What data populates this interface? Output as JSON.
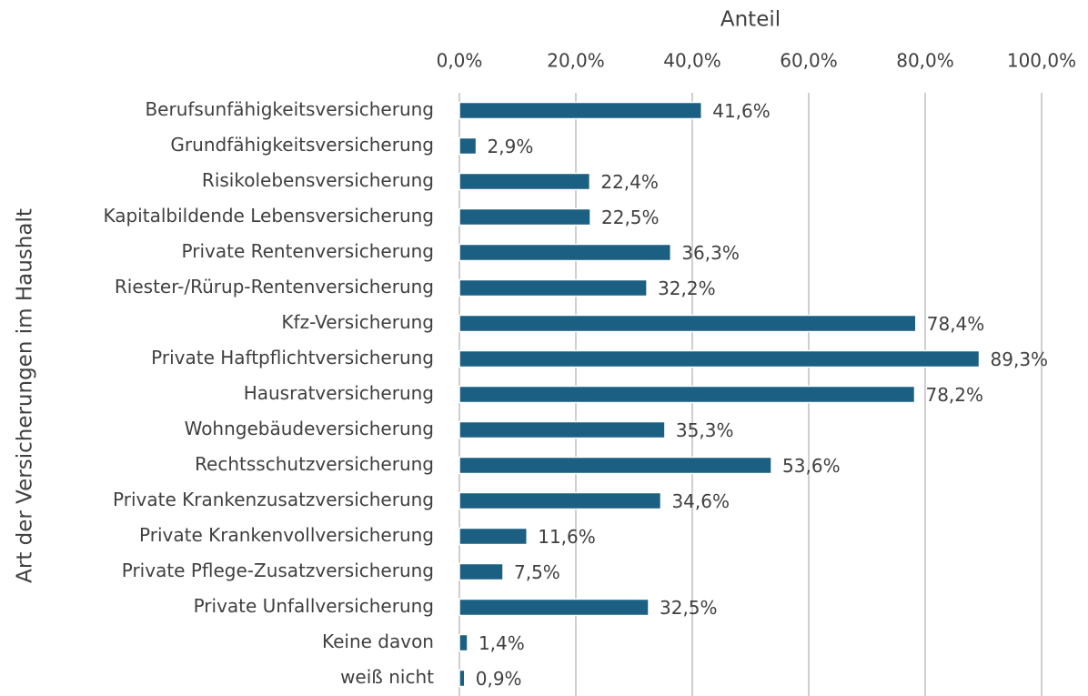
{
  "chart_data": {
    "type": "bar",
    "orientation": "horizontal",
    "x_label": "Anteil",
    "y_label": "Art der Versicherungen im Haushalt",
    "categories": [
      "Berufsunfähigkeitsversicherung",
      "Grundfähigkeitsversicherung",
      "Risikolebensversicherung",
      "Kapitalbildende Lebensversicherung",
      "Private Rentenversicherung",
      "Riester-/Rürup-Rentenversicherung",
      "Kfz-Versicherung",
      "Private Haftpflichtversicherung",
      "Hausratversicherung",
      "Wohngebäudeversicherung",
      "Rechtsschutzversicherung",
      "Private Krankenzusatzversicherung",
      "Private Krankenvollversicherung",
      "Private Pflege-Zusatzversicherung",
      "Private Unfallversicherung",
      "Keine davon",
      "weiß nicht"
    ],
    "values": [
      41.6,
      2.9,
      22.4,
      22.5,
      36.3,
      32.2,
      78.4,
      89.3,
      78.2,
      35.3,
      53.6,
      34.6,
      11.6,
      7.5,
      32.5,
      1.4,
      0.9
    ],
    "value_labels": [
      "41,6%",
      "2,9%",
      "22,4%",
      "22,5%",
      "36,3%",
      "32,2%",
      "78,4%",
      "89,3%",
      "78,2%",
      "35,3%",
      "53,6%",
      "34,6%",
      "11,6%",
      "7,5%",
      "32,5%",
      "1,4%",
      "0,9%"
    ],
    "color": "#1b5f82",
    "xlim": [
      0,
      100
    ],
    "xticks": [
      {
        "value": 0,
        "label": "0,0%"
      },
      {
        "value": 20,
        "label": "20,0%"
      },
      {
        "value": 40,
        "label": "40,0%"
      },
      {
        "value": 60,
        "label": "60,0%"
      },
      {
        "value": 80,
        "label": "80,0%"
      },
      {
        "value": 100,
        "label": "100,0%"
      }
    ],
    "grid": true
  }
}
